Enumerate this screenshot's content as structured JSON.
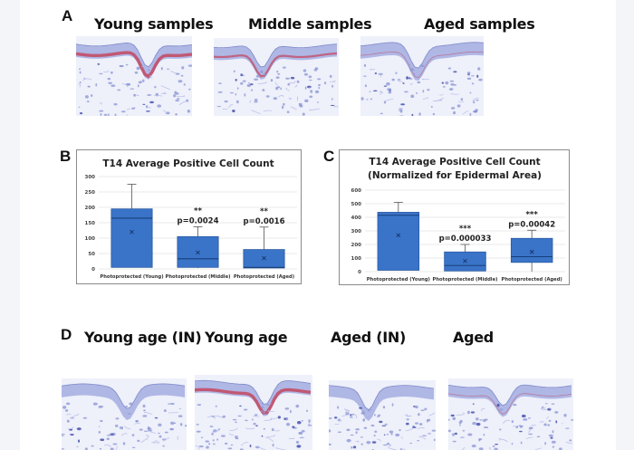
{
  "figure": {
    "panels": {
      "A": {
        "letter": "A",
        "images": [
          {
            "title": "Young samples",
            "stain": "strong"
          },
          {
            "title": "Middle samples",
            "stain": "moderate"
          },
          {
            "title": "Aged samples",
            "stain": "weak"
          }
        ]
      },
      "B": {
        "letter": "B"
      },
      "C": {
        "letter": "C"
      },
      "D": {
        "letter": "D",
        "images": [
          {
            "title": "Young age (IN)",
            "stain": "none"
          },
          {
            "title": "Young age",
            "stain": "strong"
          },
          {
            "title": "Aged (IN)",
            "stain": "none"
          },
          {
            "title": "Aged",
            "stain": "weak"
          }
        ]
      }
    },
    "colors": {
      "box_fill": "#3a74c8",
      "box_stroke": "#2a5aa3",
      "whisker": "#555555",
      "gridline": "#e2e2e2",
      "stain_positive": "#c4475e",
      "tissue": "#8c98d8"
    }
  },
  "chart_data": [
    {
      "type": "box",
      "panel": "B",
      "title": "T14 Average Positive Cell Count",
      "xlabel": "",
      "ylabel": "",
      "ylim": [
        0,
        300
      ],
      "yticks": [
        0,
        50,
        100,
        150,
        200,
        250,
        300
      ],
      "grid": true,
      "categories": [
        "Photoprotected (Young)",
        "Photoprotected (Middle)",
        "Photoprotected (Aged)"
      ],
      "boxes": [
        {
          "min": 5,
          "q1": 5,
          "median": 165,
          "q3": 195,
          "max": 275,
          "mean": 120,
          "stars": "",
          "p": ""
        },
        {
          "min": 3,
          "q1": 5,
          "median": 33,
          "q3": 105,
          "max": 137,
          "mean": 53,
          "stars": "**",
          "p": "p=0.0024"
        },
        {
          "min": 3,
          "q1": 3,
          "median": 5,
          "q3": 63,
          "max": 136,
          "mean": 35,
          "stars": "**",
          "p": "p=0.0016"
        }
      ]
    },
    {
      "type": "box",
      "panel": "C",
      "title": "T14 Average Positive Cell Count",
      "subtitle": "(Normalized for Epidermal Area)",
      "xlabel": "",
      "ylabel": "",
      "ylim": [
        0,
        600
      ],
      "yticks": [
        0,
        100,
        200,
        300,
        400,
        500,
        600
      ],
      "grid": true,
      "categories": [
        "Photoprotected (Young)",
        "Photoprotected (Middle)",
        "Photoprotected (Aged)"
      ],
      "boxes": [
        {
          "min": 10,
          "q1": 10,
          "median": 415,
          "q3": 437,
          "max": 510,
          "mean": 268,
          "stars": "",
          "p": ""
        },
        {
          "min": 3,
          "q1": 5,
          "median": 45,
          "q3": 145,
          "max": 200,
          "mean": 78,
          "stars": "***",
          "p": "p=0.000033"
        },
        {
          "min": 0,
          "q1": 68,
          "median": 110,
          "q3": 245,
          "max": 305,
          "mean": 145,
          "stars": "***",
          "p": "p=0.00042"
        }
      ]
    }
  ]
}
